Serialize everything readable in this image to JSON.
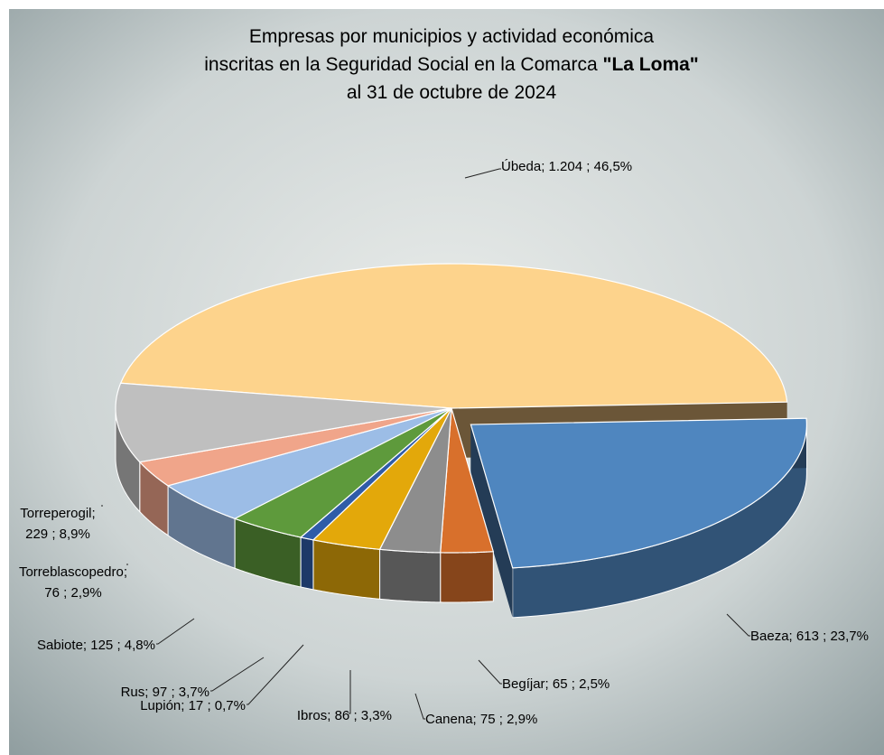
{
  "chart_data": {
    "type": "pie",
    "title_lines": [
      "Empresas por municipios y actividad económica",
      "inscritas en la Seguridad Social en la Comarca",
      "al 31 de octubre de 2024"
    ],
    "title_emphasis": "\"La Loma\"",
    "label_separator": ";",
    "categories": [
      "Úbeda",
      "Baeza",
      "Begíjar",
      "Canena",
      "Ibros",
      "Lupión",
      "Rus",
      "Sabiote",
      "Torreblascopedro",
      "Torreperogil"
    ],
    "values": [
      1204,
      613,
      65,
      75,
      86,
      17,
      97,
      125,
      76,
      229
    ],
    "value_labels": [
      "1.204",
      "613",
      "65",
      "75",
      "86",
      "17",
      "97",
      "125",
      "76",
      "229"
    ],
    "percents": [
      46.5,
      23.7,
      2.5,
      2.9,
      3.3,
      0.7,
      3.7,
      4.8,
      2.9,
      8.9
    ],
    "percent_labels": [
      "46,5%",
      "23,7%",
      "2,5%",
      "2,9%",
      "3,3%",
      "0,7%",
      "3,7%",
      "4,8%",
      "2,9%",
      "8,9%"
    ],
    "colors": [
      "#fdd38c",
      "#4f86bf",
      "#d8702c",
      "#8d8d8d",
      "#e3a80a",
      "#2f5ca8",
      "#5e9a3c",
      "#9cbde6",
      "#f0a58a",
      "#bfbfbf"
    ]
  }
}
